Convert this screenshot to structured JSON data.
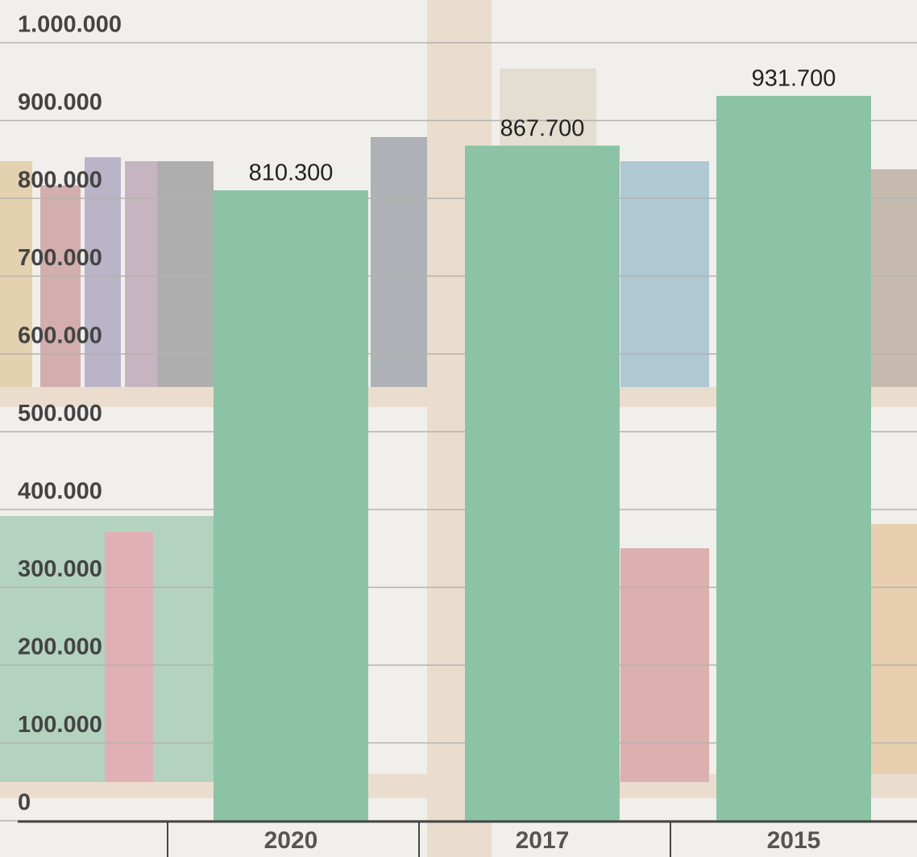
{
  "chart_data": {
    "type": "bar",
    "categories": [
      "2020",
      "2017",
      "2015"
    ],
    "values": [
      810300,
      867700,
      931700
    ],
    "value_labels": [
      "810.300",
      "867.700",
      "931.700"
    ],
    "color": "#8cc3a6",
    "ylim": [
      0,
      1000000
    ],
    "yticks": [
      0,
      {
        "value": 100000,
        "label": "100.000"
      },
      {
        "value": 200000,
        "label": "200.000"
      },
      {
        "value": 300000,
        "label": "300.000"
      },
      {
        "value": 400000,
        "label": "400.000"
      },
      {
        "value": 500000,
        "label": "500.000"
      },
      {
        "value": 600000,
        "label": "600.000"
      },
      {
        "value": 700000,
        "label": "700.000"
      },
      {
        "value": 800000,
        "label": "800.000"
      },
      {
        "value": 900000,
        "label": "900.000"
      },
      {
        "value": 1000000,
        "label": "1.000.000"
      }
    ],
    "grid": true
  }
}
